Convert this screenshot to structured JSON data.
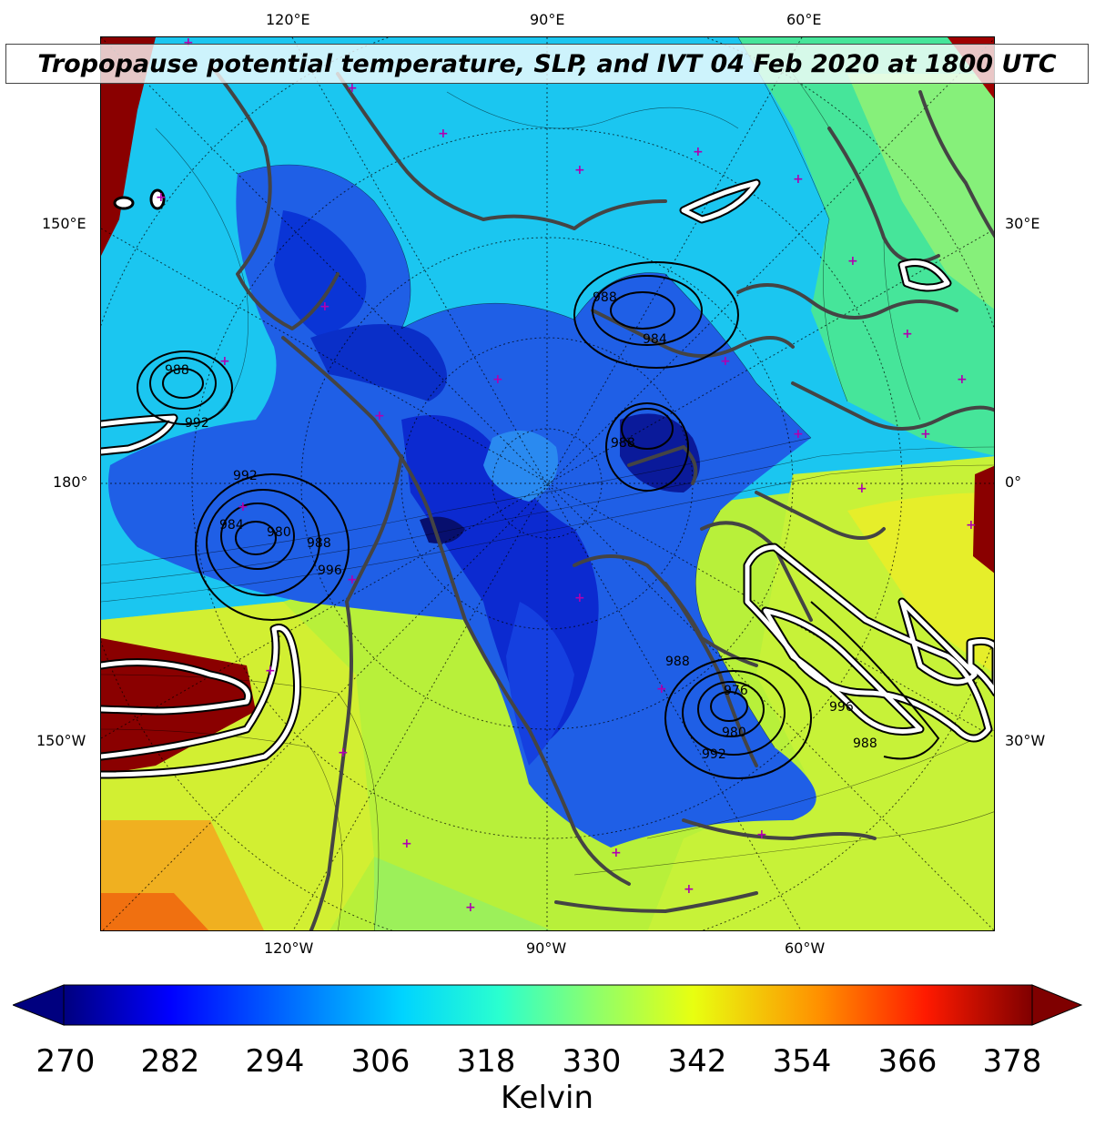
{
  "title": "Tropopause potential temperature, SLP, and IVT 04 Feb 2020 at 1800 UTC",
  "longitude_labels": {
    "top": [
      "120°E",
      "90°E",
      "60°E"
    ],
    "bottom": [
      "120°W",
      "90°W",
      "60°W"
    ],
    "left": [
      "150°E",
      "180°",
      "150°W"
    ],
    "right": [
      "30°E",
      "0°",
      "30°W"
    ]
  },
  "slp_contour_labels": [
    "988",
    "992",
    "984",
    "980",
    "988",
    "996",
    "988",
    "984",
    "992",
    "988",
    "988",
    "980",
    "976",
    "992",
    "996",
    "988"
  ],
  "colorbar": {
    "ticks": [
      "270",
      "282",
      "294",
      "306",
      "318",
      "330",
      "342",
      "354",
      "366",
      "378"
    ],
    "unit": "Kelvin",
    "min": 270,
    "max": 378,
    "colormap": "jet"
  },
  "colors": {
    "cold_core": "#0a1fbf",
    "polar_blue": "#1f5fe6",
    "mid_cyan": "#17c3f0",
    "green": "#4fe88a",
    "yellow": "#e8f02a",
    "orange": "#f07a10",
    "warm_red": "#8a0000",
    "coastline": "#444444",
    "station_marker": "#b000b0",
    "ivt_contour": "#ffffff",
    "slp_contour": "#000000"
  }
}
